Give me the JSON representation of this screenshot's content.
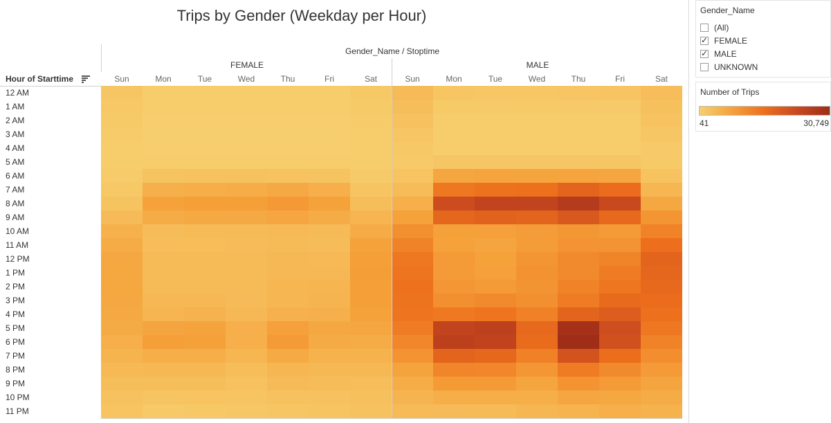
{
  "title": "Trips by Gender (Weekday per Hour)",
  "column_header": "Gender_Name / Stoptime",
  "row_header": "Hour of Starttime",
  "filter": {
    "title": "Gender_Name",
    "items": [
      {
        "label": "(All)",
        "checked": false
      },
      {
        "label": "FEMALE",
        "checked": true
      },
      {
        "label": "MALE",
        "checked": true
      },
      {
        "label": "UNKNOWN",
        "checked": false
      }
    ]
  },
  "legend": {
    "title": "Number of Trips",
    "min_label": "41",
    "max_label": "30,749",
    "colors": [
      "#f7cf6e",
      "#f5a13a",
      "#ed6f1c",
      "#c9491f",
      "#9f2d17"
    ]
  },
  "chart_data": {
    "type": "heatmap",
    "title": "Trips by Gender (Weekday per Hour)",
    "x_header": "Gender_Name / Stoptime",
    "y_header": "Hour of Starttime",
    "groups": [
      "FEMALE",
      "MALE"
    ],
    "days": [
      "Sun",
      "Mon",
      "Tue",
      "Wed",
      "Thu",
      "Fri",
      "Sat"
    ],
    "hours": [
      "12 AM",
      "1 AM",
      "2 AM",
      "3 AM",
      "4 AM",
      "5 AM",
      "6 AM",
      "7 AM",
      "8 AM",
      "9 AM",
      "10 AM",
      "11 AM",
      "12 PM",
      "1 PM",
      "2 PM",
      "3 PM",
      "4 PM",
      "5 PM",
      "6 PM",
      "7 PM",
      "8 PM",
      "9 PM",
      "10 PM",
      "11 PM"
    ],
    "value_range": [
      41,
      30749
    ],
    "values": {
      "FEMALE": [
        [
          1500,
          600,
          500,
          500,
          600,
          600,
          1200
        ],
        [
          1200,
          300,
          300,
          300,
          300,
          300,
          900
        ],
        [
          900,
          200,
          200,
          200,
          200,
          200,
          700
        ],
        [
          700,
          150,
          150,
          150,
          150,
          150,
          500
        ],
        [
          500,
          150,
          150,
          150,
          150,
          150,
          400
        ],
        [
          400,
          500,
          500,
          500,
          500,
          500,
          400
        ],
        [
          700,
          2000,
          2200,
          2200,
          2100,
          2000,
          800
        ],
        [
          1200,
          5200,
          5600,
          5700,
          6300,
          5400,
          1800
        ],
        [
          2000,
          7600,
          8100,
          8000,
          9000,
          7500,
          2900
        ],
        [
          3300,
          6000,
          6400,
          6300,
          6900,
          5800,
          4300
        ],
        [
          5000,
          3200,
          3400,
          3400,
          3700,
          3400,
          6000
        ],
        [
          6000,
          3000,
          3100,
          3200,
          3400,
          3200,
          7500
        ],
        [
          6700,
          3400,
          3400,
          3600,
          3800,
          3700,
          8100
        ],
        [
          6800,
          3500,
          3500,
          3600,
          3900,
          3900,
          8200
        ],
        [
          6800,
          3600,
          3500,
          3500,
          4200,
          4400,
          8100
        ],
        [
          6600,
          3800,
          3800,
          3300,
          4200,
          4500,
          8000
        ],
        [
          6400,
          4400,
          4800,
          3900,
          5100,
          5200,
          7600
        ],
        [
          6100,
          7000,
          7400,
          5300,
          7800,
          6600,
          6900
        ],
        [
          5300,
          8000,
          7700,
          5400,
          8800,
          6100,
          5800
        ],
        [
          4600,
          5600,
          5600,
          4200,
          6200,
          4900,
          4900
        ],
        [
          3700,
          3800,
          3800,
          3100,
          4200,
          3800,
          3900
        ],
        [
          2900,
          2800,
          2900,
          2400,
          3300,
          3200,
          3000
        ],
        [
          2300,
          1800,
          1900,
          1900,
          2300,
          2400,
          2500
        ],
        [
          1900,
          1100,
          1200,
          1300,
          1500,
          1800,
          2200
        ]
      ],
      "MALE": [
        [
          3500,
          1600,
          1400,
          1400,
          1700,
          1900,
          3000
        ],
        [
          2900,
          900,
          800,
          900,
          1000,
          1000,
          2600
        ],
        [
          2400,
          500,
          500,
          500,
          500,
          600,
          2100
        ],
        [
          1700,
          400,
          400,
          400,
          400,
          400,
          1500
        ],
        [
          1200,
          400,
          400,
          400,
          400,
          400,
          1000
        ],
        [
          1000,
          1500,
          1500,
          1500,
          1500,
          1500,
          900
        ],
        [
          1900,
          6900,
          7200,
          7100,
          7200,
          6900,
          2100
        ],
        [
          3200,
          14000,
          15000,
          15300,
          17500,
          16000,
          4100
        ],
        [
          5300,
          22500,
          24500,
          24500,
          27000,
          23000,
          6500
        ],
        [
          7500,
          17000,
          18000,
          17600,
          19800,
          16700,
          9600
        ],
        [
          10500,
          7700,
          7800,
          8500,
          9300,
          8800,
          12500
        ],
        [
          12500,
          7600,
          7000,
          8300,
          9900,
          9800,
          15500
        ],
        [
          14200,
          8800,
          7600,
          9600,
          11300,
          12100,
          17500
        ],
        [
          14600,
          8800,
          7800,
          10000,
          11300,
          13400,
          17100
        ],
        [
          14900,
          9400,
          8800,
          9700,
          12300,
          14300,
          16700
        ],
        [
          14800,
          10400,
          11200,
          10500,
          13400,
          16500,
          16000
        ],
        [
          14400,
          13900,
          14700,
          12700,
          17600,
          19000,
          15300
        ],
        [
          13400,
          24500,
          25200,
          16700,
          29700,
          22000,
          14100
        ],
        [
          11900,
          25500,
          24700,
          16300,
          30749,
          21500,
          12500
        ],
        [
          9900,
          17500,
          16800,
          12700,
          21000,
          15600,
          10700
        ],
        [
          7400,
          12000,
          11800,
          9400,
          13600,
          11200,
          8800
        ],
        [
          5700,
          8700,
          8800,
          7100,
          9900,
          8800,
          7000
        ],
        [
          4500,
          5600,
          5600,
          5600,
          6900,
          6800,
          5800
        ],
        [
          3600,
          3300,
          3500,
          4000,
          4700,
          5300,
          4900
        ]
      ]
    }
  }
}
